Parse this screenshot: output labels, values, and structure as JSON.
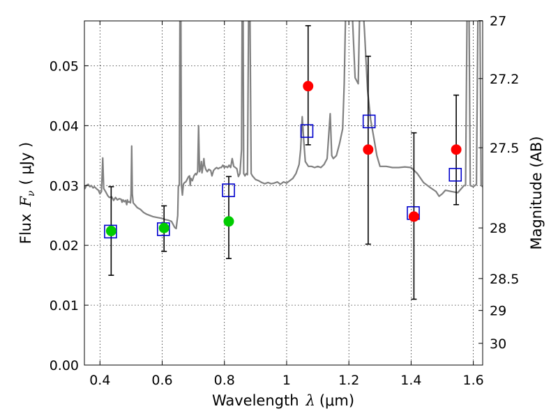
{
  "chart_data": {
    "type": "scatter",
    "xlabel": "Wavelength",
    "xlabel_symbol": "λ",
    "xlabel_unit": "(μm)",
    "ylabel": "Flux",
    "ylabel_symbol": "F",
    "ylabel_subscript": "ν",
    "ylabel_unit": "( μJy )",
    "y2label": "Magnitude (AB)",
    "xlim": [
      0.35,
      1.63
    ],
    "ylim": [
      0.0,
      0.0575
    ],
    "grid": true,
    "grid_style": "dotted",
    "x_ticks": [
      0.4,
      0.6,
      0.8,
      1.0,
      1.2,
      1.4,
      1.6
    ],
    "x_tick_labels": [
      "0.4",
      "0.6",
      "0.8",
      "1",
      "1.2",
      "1.4",
      "1.6"
    ],
    "y_ticks": [
      0.0,
      0.01,
      0.02,
      0.03,
      0.04,
      0.05
    ],
    "y_tick_labels": [
      "0.00",
      "0.01",
      "0.02",
      "0.03",
      "0.04",
      "0.05"
    ],
    "y2_ticks": [
      {
        "label": "27",
        "mag": 27.0
      },
      {
        "label": "27.2",
        "mag": 27.2
      },
      {
        "label": "27.5",
        "mag": 27.5
      },
      {
        "label": "28",
        "mag": 28.0
      },
      {
        "label": "28.5",
        "mag": 28.5
      },
      {
        "label": "29",
        "mag": 29.0
      },
      {
        "label": "30",
        "mag": 30.0
      }
    ],
    "colors": {
      "model": "#808080",
      "observed_detection": "#00cc00",
      "observed_upper": "#ff0000",
      "model_photometry": "#0000cc",
      "errorbar": "#000000"
    },
    "series": [
      {
        "style": "line",
        "color": "#808080",
        "points": [
          [
            0.35,
            0.03
          ],
          [
            0.352,
            0.0295
          ],
          [
            0.356,
            0.03
          ],
          [
            0.362,
            0.0302
          ],
          [
            0.368,
            0.0298
          ],
          [
            0.372,
            0.03
          ],
          [
            0.378,
            0.0296
          ],
          [
            0.382,
            0.0298
          ],
          [
            0.386,
            0.0296
          ],
          [
            0.39,
            0.0294
          ],
          [
            0.395,
            0.0292
          ],
          [
            0.4,
            0.0286
          ],
          [
            0.405,
            0.029
          ],
          [
            0.409,
            0.0346
          ],
          [
            0.412,
            0.0295
          ],
          [
            0.418,
            0.029
          ],
          [
            0.425,
            0.0283
          ],
          [
            0.43,
            0.028
          ],
          [
            0.438,
            0.0281
          ],
          [
            0.444,
            0.0275
          ],
          [
            0.45,
            0.028
          ],
          [
            0.456,
            0.0276
          ],
          [
            0.462,
            0.0278
          ],
          [
            0.468,
            0.0277
          ],
          [
            0.471,
            0.0272
          ],
          [
            0.474,
            0.0276
          ],
          [
            0.478,
            0.0273
          ],
          [
            0.482,
            0.0275
          ],
          [
            0.486,
            0.0268
          ],
          [
            0.488,
            0.0276
          ],
          [
            0.49,
            0.0272
          ],
          [
            0.494,
            0.0273
          ],
          [
            0.498,
            0.0271
          ],
          [
            0.5,
            0.0286
          ],
          [
            0.502,
            0.0366
          ],
          [
            0.504,
            0.0286
          ],
          [
            0.507,
            0.0271
          ],
          [
            0.512,
            0.0268
          ],
          [
            0.52,
            0.0263
          ],
          [
            0.53,
            0.026
          ],
          [
            0.54,
            0.0255
          ],
          [
            0.55,
            0.0252
          ],
          [
            0.56,
            0.025
          ],
          [
            0.57,
            0.0248
          ],
          [
            0.58,
            0.0247
          ],
          [
            0.59,
            0.0246
          ],
          [
            0.6,
            0.0245
          ],
          [
            0.61,
            0.0243
          ],
          [
            0.62,
            0.0242
          ],
          [
            0.63,
            0.024
          ],
          [
            0.64,
            0.023
          ],
          [
            0.645,
            0.0228
          ],
          [
            0.65,
            0.025
          ],
          [
            0.652,
            0.03
          ],
          [
            0.655,
            0.03
          ],
          [
            0.657,
            0.06
          ],
          [
            0.66,
            0.06
          ],
          [
            0.662,
            0.03
          ],
          [
            0.665,
            0.0284
          ],
          [
            0.668,
            0.0302
          ],
          [
            0.672,
            0.0305
          ],
          [
            0.676,
            0.0306
          ],
          [
            0.68,
            0.031
          ],
          [
            0.685,
            0.0315
          ],
          [
            0.688,
            0.0316
          ],
          [
            0.69,
            0.03
          ],
          [
            0.692,
            0.0312
          ],
          [
            0.697,
            0.0308
          ],
          [
            0.702,
            0.0316
          ],
          [
            0.707,
            0.032
          ],
          [
            0.71,
            0.0318
          ],
          [
            0.714,
            0.0323
          ],
          [
            0.717,
            0.04
          ],
          [
            0.72,
            0.0323
          ],
          [
            0.724,
            0.033
          ],
          [
            0.726,
            0.034
          ],
          [
            0.728,
            0.0321
          ],
          [
            0.732,
            0.0335
          ],
          [
            0.734,
            0.0345
          ],
          [
            0.736,
            0.0334
          ],
          [
            0.74,
            0.0327
          ],
          [
            0.745,
            0.0323
          ],
          [
            0.75,
            0.0327
          ],
          [
            0.756,
            0.0325
          ],
          [
            0.76,
            0.0316
          ],
          [
            0.765,
            0.0325
          ],
          [
            0.77,
            0.0328
          ],
          [
            0.775,
            0.033
          ],
          [
            0.78,
            0.0328
          ],
          [
            0.786,
            0.033
          ],
          [
            0.79,
            0.033
          ],
          [
            0.795,
            0.0334
          ],
          [
            0.8,
            0.033
          ],
          [
            0.805,
            0.0332
          ],
          [
            0.81,
            0.033
          ],
          [
            0.815,
            0.0334
          ],
          [
            0.82,
            0.033
          ],
          [
            0.825,
            0.0345
          ],
          [
            0.83,
            0.0332
          ],
          [
            0.835,
            0.033
          ],
          [
            0.84,
            0.0328
          ],
          [
            0.845,
            0.0315
          ],
          [
            0.85,
            0.032
          ],
          [
            0.855,
            0.036
          ],
          [
            0.857,
            0.06
          ],
          [
            0.86,
            0.06
          ],
          [
            0.862,
            0.032
          ],
          [
            0.866,
            0.0316
          ],
          [
            0.87,
            0.032
          ],
          [
            0.874,
            0.0318
          ],
          [
            0.878,
            0.06
          ],
          [
            0.882,
            0.06
          ],
          [
            0.886,
            0.032
          ],
          [
            0.89,
            0.0316
          ],
          [
            0.9,
            0.031
          ],
          [
            0.91,
            0.0308
          ],
          [
            0.92,
            0.0305
          ],
          [
            0.93,
            0.0303
          ],
          [
            0.94,
            0.0305
          ],
          [
            0.95,
            0.0303
          ],
          [
            0.96,
            0.0304
          ],
          [
            0.97,
            0.0306
          ],
          [
            0.98,
            0.0302
          ],
          [
            0.99,
            0.0306
          ],
          [
            1.0,
            0.0304
          ],
          [
            1.01,
            0.0308
          ],
          [
            1.02,
            0.0312
          ],
          [
            1.03,
            0.032
          ],
          [
            1.04,
            0.0335
          ],
          [
            1.045,
            0.036
          ],
          [
            1.05,
            0.0415
          ],
          [
            1.055,
            0.0375
          ],
          [
            1.06,
            0.034
          ],
          [
            1.07,
            0.0332
          ],
          [
            1.08,
            0.0332
          ],
          [
            1.09,
            0.033
          ],
          [
            1.1,
            0.0332
          ],
          [
            1.11,
            0.033
          ],
          [
            1.12,
            0.0335
          ],
          [
            1.13,
            0.0345
          ],
          [
            1.14,
            0.042
          ],
          [
            1.145,
            0.035
          ],
          [
            1.15,
            0.0345
          ],
          [
            1.16,
            0.035
          ],
          [
            1.17,
            0.037
          ],
          [
            1.18,
            0.0395
          ],
          [
            1.185,
            0.047
          ],
          [
            1.19,
            0.06
          ],
          [
            1.21,
            0.06
          ],
          [
            1.22,
            0.048
          ],
          [
            1.23,
            0.047
          ],
          [
            1.235,
            0.06
          ],
          [
            1.245,
            0.06
          ],
          [
            1.25,
            0.056
          ],
          [
            1.26,
            0.046
          ],
          [
            1.27,
            0.041
          ],
          [
            1.28,
            0.038
          ],
          [
            1.29,
            0.035
          ],
          [
            1.3,
            0.0332
          ],
          [
            1.32,
            0.0332
          ],
          [
            1.34,
            0.033
          ],
          [
            1.36,
            0.033
          ],
          [
            1.38,
            0.0331
          ],
          [
            1.4,
            0.033
          ],
          [
            1.42,
            0.032
          ],
          [
            1.44,
            0.0305
          ],
          [
            1.46,
            0.0297
          ],
          [
            1.48,
            0.029
          ],
          [
            1.49,
            0.0282
          ],
          [
            1.5,
            0.0286
          ],
          [
            1.51,
            0.0292
          ],
          [
            1.53,
            0.029
          ],
          [
            1.55,
            0.0288
          ],
          [
            1.57,
            0.03
          ],
          [
            1.575,
            0.03
          ],
          [
            1.58,
            0.06
          ],
          [
            1.586,
            0.06
          ],
          [
            1.59,
            0.03
          ],
          [
            1.6,
            0.0298
          ],
          [
            1.61,
            0.0302
          ],
          [
            1.615,
            0.06
          ],
          [
            1.621,
            0.06
          ],
          [
            1.625,
            0.03
          ],
          [
            1.63,
            0.0298
          ]
        ]
      },
      {
        "style": "errorbar",
        "color": "#000000",
        "points": [
          {
            "x": 0.436,
            "low": 0.015,
            "high": 0.0298
          },
          {
            "x": 0.606,
            "low": 0.019,
            "high": 0.0266
          },
          {
            "x": 0.814,
            "low": 0.0178,
            "high": 0.0315
          },
          {
            "x": 1.069,
            "low": 0.0368,
            "high": 0.0567
          },
          {
            "x": 1.262,
            "low": 0.0202,
            "high": 0.0516
          },
          {
            "x": 1.409,
            "low": 0.011,
            "high": 0.0388
          },
          {
            "x": 1.545,
            "low": 0.0268,
            "high": 0.0451
          }
        ]
      },
      {
        "style": "markers-square",
        "color": "#0000cc",
        "x": [
          0.434,
          0.604,
          0.813,
          1.065,
          1.265,
          1.407,
          1.542
        ],
        "y": [
          0.0223,
          0.0227,
          0.0292,
          0.0391,
          0.0407,
          0.0254,
          0.0318
        ]
      },
      {
        "style": "markers-circle",
        "color": "#00cc00",
        "x": [
          0.436,
          0.606,
          0.814
        ],
        "y": [
          0.0224,
          0.0229,
          0.024
        ]
      },
      {
        "style": "markers-circle",
        "color": "#ff0000",
        "x": [
          1.069,
          1.262,
          1.409,
          1.545
        ],
        "y": [
          0.0466,
          0.036,
          0.0248,
          0.036
        ]
      }
    ]
  }
}
